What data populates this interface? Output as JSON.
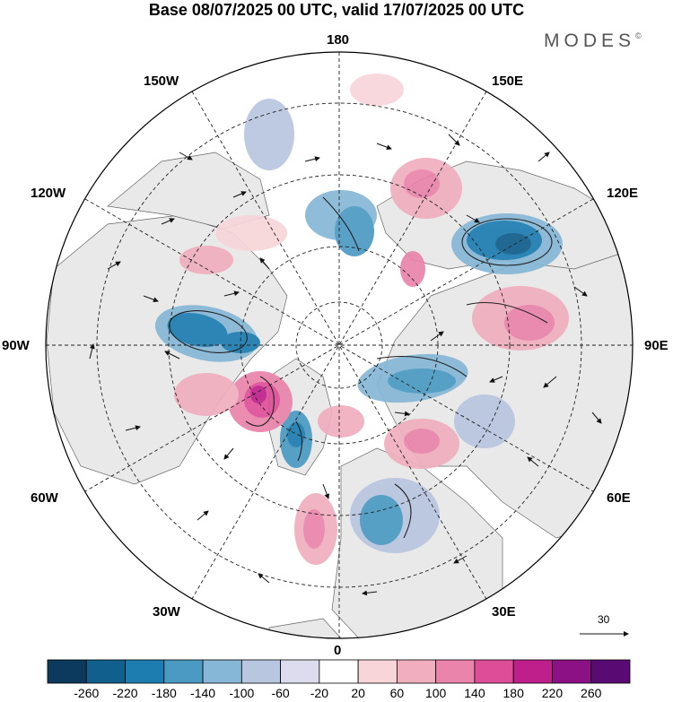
{
  "title": "Base 08/07/2025 00 UTC, valid 17/07/2025 00 UTC",
  "brand": {
    "name": "MODES",
    "mark": "©"
  },
  "map": {
    "projection": "north-polar-stereographic",
    "center_longitude_bottom": "0",
    "longitude_labels": {
      "top": "180",
      "top_left": "150W",
      "top_right": "150E",
      "upper_left": "120W",
      "upper_right": "120E",
      "left": "90W",
      "right": "90E",
      "lower_left": "60W",
      "lower_right": "60E",
      "bottom_left": "30W",
      "bottom_right": "30E",
      "bottom": "0"
    },
    "vector_reference": {
      "value": "30"
    }
  },
  "colorbar": {
    "ticks": [
      "-260",
      "-220",
      "-180",
      "-140",
      "-100",
      "-60",
      "-20",
      "20",
      "60",
      "100",
      "140",
      "180",
      "220",
      "260"
    ],
    "colors": [
      "#0b3a5c",
      "#115f8c",
      "#1d7db0",
      "#4b9ac3",
      "#86b7d6",
      "#b8c6e0",
      "#dcdcee",
      "#ffffff",
      "#f7d5d9",
      "#f0aebe",
      "#ea84aa",
      "#de4e98",
      "#bf1f8b",
      "#8c1185",
      "#5a0a73"
    ]
  },
  "colors": {
    "land_fill": "#e9e9e9",
    "ocean": "#ffffff",
    "coast": "#555555"
  }
}
